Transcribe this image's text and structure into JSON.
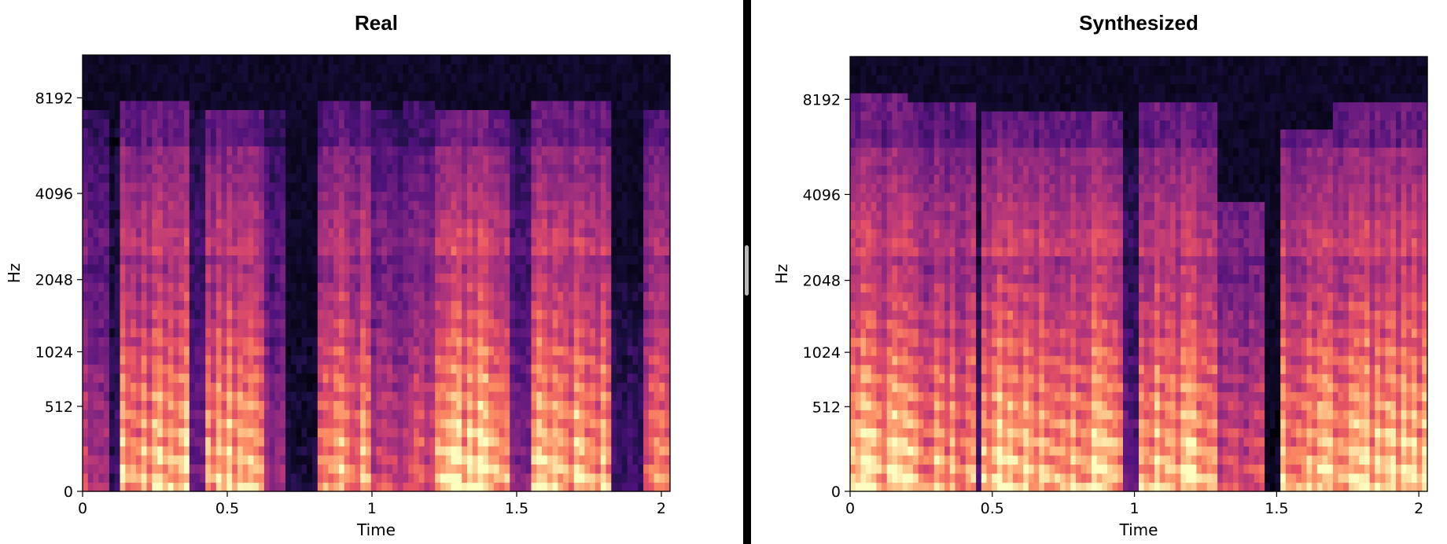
{
  "colormap": "magma",
  "chart_data": [
    {
      "type": "heatmap",
      "title": "Real",
      "xlabel": "Time",
      "ylabel": "Hz",
      "xlim": [
        0,
        2.03
      ],
      "x_ticks": [
        "0",
        "0.5",
        "1",
        "1.5",
        "2"
      ],
      "x_tick_values": [
        0,
        0.5,
        1,
        1.5,
        2
      ],
      "y_scale": "mel",
      "y_ticks": [
        "0",
        "512",
        "1024",
        "2048",
        "4096",
        "8192"
      ],
      "y_tick_values": [
        0,
        512,
        1024,
        2048,
        4096,
        8192
      ],
      "ylim": [
        0,
        11025
      ],
      "description_segments": [
        {
          "start": 0.0,
          "end": 0.09,
          "energy": 0.55,
          "top_hz": 7500
        },
        {
          "start": 0.09,
          "end": 0.13,
          "energy": 0.2,
          "top_hz": 7000
        },
        {
          "start": 0.13,
          "end": 0.36,
          "energy": 0.85,
          "top_hz": 7800
        },
        {
          "start": 0.36,
          "end": 0.42,
          "energy": 0.35,
          "top_hz": 7500
        },
        {
          "start": 0.42,
          "end": 0.62,
          "energy": 0.85,
          "top_hz": 7600
        },
        {
          "start": 0.62,
          "end": 0.7,
          "energy": 0.45,
          "top_hz": 7400
        },
        {
          "start": 0.7,
          "end": 0.82,
          "energy": 0.1,
          "top_hz": 1200
        },
        {
          "start": 0.82,
          "end": 1.0,
          "energy": 0.8,
          "top_hz": 7800
        },
        {
          "start": 1.0,
          "end": 1.1,
          "energy": 0.55,
          "top_hz": 7500
        },
        {
          "start": 1.1,
          "end": 1.22,
          "energy": 0.6,
          "top_hz": 7800
        },
        {
          "start": 1.22,
          "end": 1.48,
          "energy": 0.9,
          "top_hz": 7600
        },
        {
          "start": 1.48,
          "end": 1.55,
          "energy": 0.4,
          "top_hz": 7200
        },
        {
          "start": 1.55,
          "end": 1.83,
          "energy": 0.85,
          "top_hz": 7800
        },
        {
          "start": 1.83,
          "end": 1.93,
          "energy": 0.2,
          "top_hz": 2000
        },
        {
          "start": 1.93,
          "end": 2.03,
          "energy": 0.7,
          "top_hz": 7600
        }
      ]
    },
    {
      "type": "heatmap",
      "title": "Synthesized",
      "xlabel": "Time",
      "ylabel": "Hz",
      "xlim": [
        0,
        2.03
      ],
      "x_ticks": [
        "0",
        "0.5",
        "1",
        "1.5",
        "2"
      ],
      "x_tick_values": [
        0,
        0.5,
        1,
        1.5,
        2
      ],
      "y_scale": "mel",
      "y_ticks": [
        "0",
        "512",
        "1024",
        "2048",
        "4096",
        "8192"
      ],
      "y_tick_values": [
        0,
        512,
        1024,
        2048,
        4096,
        8192
      ],
      "ylim": [
        0,
        11025
      ],
      "description_segments": [
        {
          "start": 0.0,
          "end": 0.2,
          "energy": 0.9,
          "top_hz": 8500
        },
        {
          "start": 0.2,
          "end": 0.44,
          "energy": 0.8,
          "top_hz": 7800
        },
        {
          "start": 0.44,
          "end": 0.47,
          "energy": 0.25,
          "top_hz": 3000
        },
        {
          "start": 0.47,
          "end": 0.96,
          "energy": 0.9,
          "top_hz": 7700
        },
        {
          "start": 0.96,
          "end": 1.02,
          "energy": 0.3,
          "top_hz": 6000
        },
        {
          "start": 1.02,
          "end": 1.3,
          "energy": 0.85,
          "top_hz": 7900
        },
        {
          "start": 1.3,
          "end": 1.45,
          "energy": 0.6,
          "top_hz": 3800
        },
        {
          "start": 1.45,
          "end": 1.52,
          "energy": 0.05,
          "top_hz": 500
        },
        {
          "start": 1.52,
          "end": 1.7,
          "energy": 0.85,
          "top_hz": 6800
        },
        {
          "start": 1.7,
          "end": 2.03,
          "energy": 0.9,
          "top_hz": 7800
        }
      ]
    }
  ]
}
